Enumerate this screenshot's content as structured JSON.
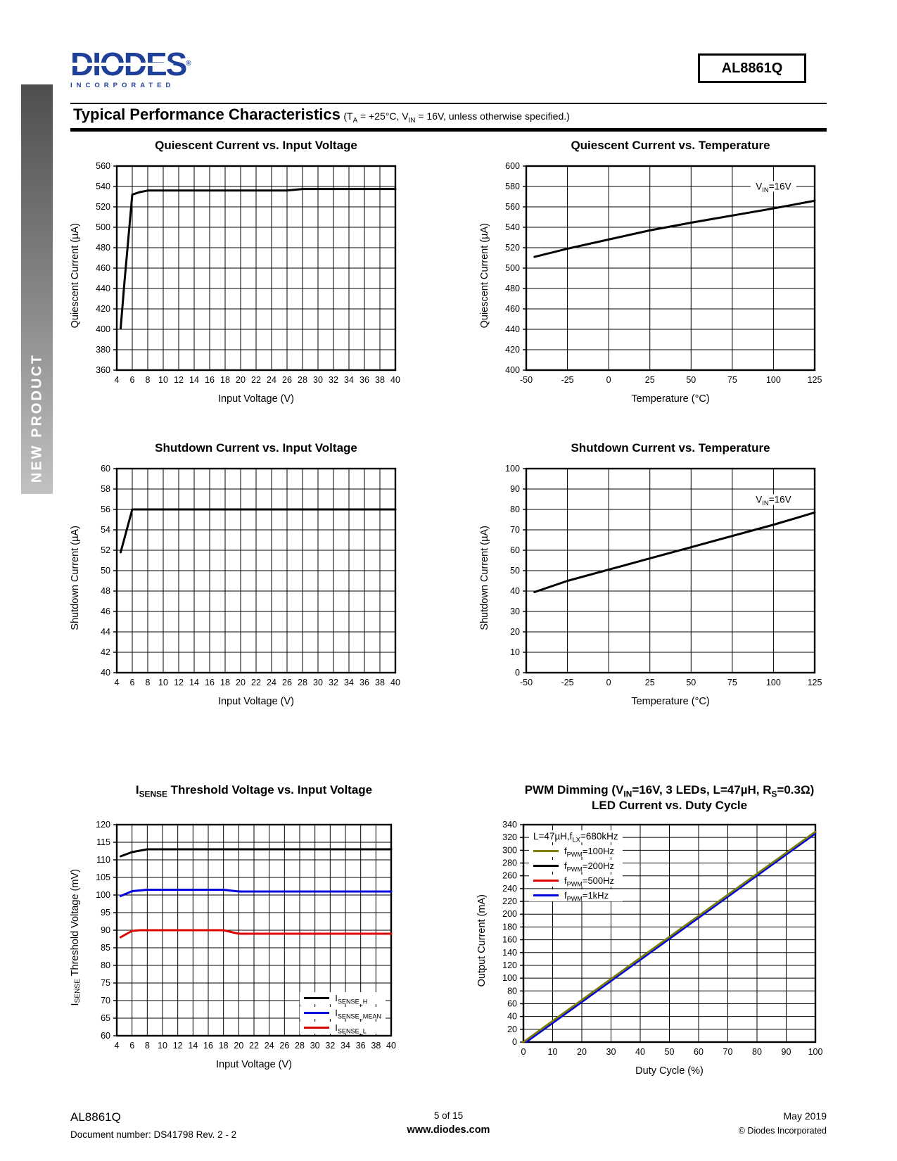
{
  "sidebar": {
    "label": "NEW PRODUCT"
  },
  "header": {
    "logo_text": "DIODES",
    "logo_reg": "®",
    "logo_subtext": "INCORPORATED",
    "part_number": "AL8861Q"
  },
  "section": {
    "title": "Typical Performance Characteristics",
    "conditions": "(T~A~ = +25°C, V~IN~ = 16V, unless otherwise specified.)"
  },
  "footer": {
    "part": "AL8861Q",
    "doc": "Document number: DS41798  Rev. 2 - 2",
    "page": "5 of 15",
    "site": "www.diodes.com",
    "date": "May 2019",
    "copyright": "© Diodes Incorporated"
  },
  "chart_data": [
    {
      "type": "line",
      "name": "quiescent-current-vs-input-voltage",
      "title": "Quiescent Current vs. Input Voltage",
      "xlabel": "Input Voltage (V)",
      "ylabel": "Quiescent Current (µA)",
      "xlim": [
        4,
        40
      ],
      "xstep": 2,
      "ylim": [
        360,
        560
      ],
      "ystep": 20,
      "grid": true,
      "series": [
        {
          "name": "quiescent-current",
          "color": "#000000",
          "width": 3,
          "points": [
            [
              4.5,
              401
            ],
            [
              5,
              447
            ],
            [
              6,
              532
            ],
            [
              7,
              534.5
            ],
            [
              8,
              536
            ],
            [
              26,
              536
            ],
            [
              28,
              537.5
            ],
            [
              40,
              537.5
            ]
          ]
        }
      ]
    },
    {
      "type": "line",
      "name": "quiescent-current-vs-temperature",
      "title": "Quiescent Current vs. Temperature",
      "xlabel": "Temperature (°C)",
      "ylabel": "Quiescent Current (µA)",
      "xlim": [
        -50,
        125
      ],
      "xstep": 25,
      "ylim": [
        400,
        600
      ],
      "ystep": 20,
      "grid": true,
      "annotation": {
        "text": "V~IN~=16V",
        "x": 100,
        "y": 580
      },
      "series": [
        {
          "name": "quiescent-current",
          "color": "#000000",
          "width": 3,
          "points": [
            [
              -45,
              511
            ],
            [
              -25,
              519
            ],
            [
              0,
              528
            ],
            [
              25,
              537
            ],
            [
              50,
              544.5
            ],
            [
              75,
              551.5
            ],
            [
              100,
              558.5
            ],
            [
              125,
              566
            ]
          ]
        }
      ]
    },
    {
      "type": "line",
      "name": "shutdown-current-vs-input-voltage",
      "title": "Shutdown Current vs. Input Voltage",
      "xlabel": "Input Voltage (V)",
      "ylabel": "Shutdown Current (µA)",
      "xlim": [
        4,
        40
      ],
      "xstep": 2,
      "ylim": [
        40,
        60
      ],
      "ystep": 2,
      "grid": true,
      "series": [
        {
          "name": "shutdown-current",
          "color": "#000000",
          "width": 3,
          "points": [
            [
              4.5,
              51.8
            ],
            [
              6,
              56
            ],
            [
              40,
              56
            ]
          ]
        }
      ]
    },
    {
      "type": "line",
      "name": "shutdown-current-vs-temperature",
      "title": "Shutdown Current vs. Temperature",
      "xlabel": "Temperature (°C)",
      "ylabel": "Shutdown Current (µA)",
      "xlim": [
        -50,
        125
      ],
      "xstep": 25,
      "ylim": [
        0,
        100
      ],
      "ystep": 10,
      "grid": true,
      "annotation": {
        "text": "V~IN~=16V",
        "x": 100,
        "y": 85
      },
      "series": [
        {
          "name": "shutdown-current",
          "color": "#000000",
          "width": 3,
          "points": [
            [
              -45,
              39.5
            ],
            [
              -25,
              45
            ],
            [
              0,
              50.5
            ],
            [
              25,
              56
            ],
            [
              50,
              61.5
            ],
            [
              75,
              67
            ],
            [
              100,
              72.5
            ],
            [
              125,
              78.5
            ]
          ]
        }
      ]
    },
    {
      "type": "line",
      "name": "isense-threshold-voltage-vs-input-voltage",
      "title": "I~SENSE~ Threshold Voltage vs. Input Voltage",
      "xlabel": "Input Voltage (V)",
      "ylabel": "I~SENSE~ Threshold Voltage (mV)",
      "xlim": [
        4,
        40
      ],
      "xstep": 2,
      "ylim": [
        60,
        120
      ],
      "ystep": 5,
      "grid": true,
      "legend": {
        "position": "bottom-right",
        "entries": [
          {
            "label": "I~SENSE_H~",
            "color": "#000000"
          },
          {
            "label": "I~SENSE_MEAN~",
            "color": "#0000dd"
          },
          {
            "label": "I~SENSE_L~",
            "color": "#dd0000"
          }
        ]
      },
      "series": [
        {
          "name": "isense-h",
          "color": "#000000",
          "width": 3,
          "points": [
            [
              4.5,
              111
            ],
            [
              6,
              112.2
            ],
            [
              8,
              113
            ],
            [
              40,
              113
            ]
          ]
        },
        {
          "name": "isense-mean",
          "color": "#0000dd",
          "width": 3,
          "points": [
            [
              4.5,
              99.7
            ],
            [
              6,
              101.1
            ],
            [
              8,
              101.5
            ],
            [
              18,
              101.5
            ],
            [
              20,
              101
            ],
            [
              40,
              101
            ]
          ]
        },
        {
          "name": "isense-l",
          "color": "#dd0000",
          "width": 3,
          "points": [
            [
              4.5,
              88
            ],
            [
              6,
              89.8
            ],
            [
              7,
              90
            ],
            [
              18,
              90
            ],
            [
              20,
              89
            ],
            [
              40,
              89
            ]
          ]
        }
      ]
    },
    {
      "type": "line",
      "name": "pwm-dimming-led-current-vs-duty-cycle",
      "title": "PWM Dimming (V~IN~=16V, 3 LEDs, L=47µH, R~S~=0.3Ω)",
      "title2": "LED Current vs. Duty Cycle",
      "xlabel": "Duty Cycle (%)",
      "ylabel": "Output Current (mA)",
      "xlim": [
        0,
        100
      ],
      "xstep": 10,
      "ylim": [
        0,
        340
      ],
      "ystep": 20,
      "grid": true,
      "legend": {
        "position": "top-left",
        "header": "L=47µH,f~LX~=680kHz",
        "entries": [
          {
            "label": "f~PWM~=100Hz",
            "color": "#7f7f00"
          },
          {
            "label": "f~PWM~=200Hz",
            "color": "#000000"
          },
          {
            "label": "f~PWM~=500Hz",
            "color": "#e00000"
          },
          {
            "label": "f~PWM~=1kHz",
            "color": "#0000dd"
          }
        ]
      },
      "series": [
        {
          "name": "fpwm-200hz",
          "color": "#000000",
          "width": 2.6,
          "points": [
            [
              0,
              0
            ],
            [
              100,
              329
            ]
          ]
        },
        {
          "name": "fpwm-500hz",
          "color": "#e00000",
          "width": 2.6,
          "points": [
            [
              0,
              0
            ],
            [
              100,
              328
            ]
          ]
        },
        {
          "name": "fpwm-1khz",
          "color": "#0000dd",
          "width": 2.6,
          "points": [
            [
              1,
              0
            ],
            [
              100,
              326
            ]
          ]
        },
        {
          "name": "fpwm-100hz",
          "color": "#7f7f00",
          "width": 2.6,
          "points": [
            [
              0,
              0
            ],
            [
              100,
              329
            ]
          ]
        }
      ]
    }
  ]
}
